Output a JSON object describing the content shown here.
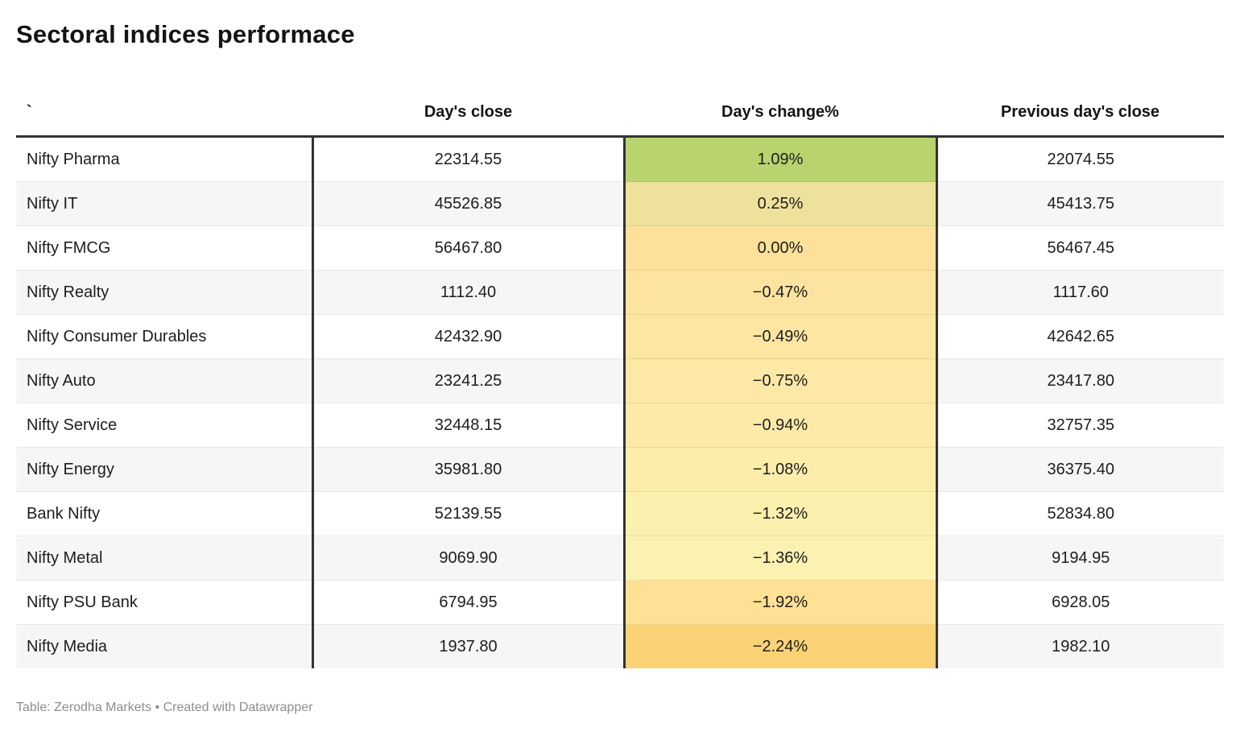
{
  "title": "Sectoral indices performace",
  "columns": {
    "index": "`",
    "days_close": "Day's close",
    "days_change": "Day's change%",
    "prev_close": "Previous day's close"
  },
  "rows": [
    {
      "index": "Nifty Pharma",
      "days_close": "22314.55",
      "days_change": "1.09%",
      "prev_close": "22074.55",
      "change_bg": "#b9d36f"
    },
    {
      "index": "Nifty IT",
      "days_close": "45526.85",
      "days_change": "0.25%",
      "prev_close": "45413.75",
      "change_bg": "#eee19c"
    },
    {
      "index": "Nifty FMCG",
      "days_close": "56467.80",
      "days_change": "0.00%",
      "prev_close": "56467.45",
      "change_bg": "#fde09a"
    },
    {
      "index": "Nifty Realty",
      "days_close": "1112.40",
      "days_change": "−0.47%",
      "prev_close": "1117.60",
      "change_bg": "#fde3a0"
    },
    {
      "index": "Nifty Consumer Durables",
      "days_close": "42432.90",
      "days_change": "−0.49%",
      "prev_close": "42642.65",
      "change_bg": "#fde5a2"
    },
    {
      "index": "Nifty Auto",
      "days_close": "23241.25",
      "days_change": "−0.75%",
      "prev_close": "23417.80",
      "change_bg": "#fde8a5"
    },
    {
      "index": "Nifty Service",
      "days_close": "32448.15",
      "days_change": "−0.94%",
      "prev_close": "32757.35",
      "change_bg": "#fdeaa8"
    },
    {
      "index": "Nifty Energy",
      "days_close": "35981.80",
      "days_change": "−1.08%",
      "prev_close": "36375.40",
      "change_bg": "#fcedab"
    },
    {
      "index": "Bank Nifty",
      "days_close": "52139.55",
      "days_change": "−1.32%",
      "prev_close": "52834.80",
      "change_bg": "#fbf0ad"
    },
    {
      "index": "Nifty Metal",
      "days_close": "9069.90",
      "days_change": "−1.36%",
      "prev_close": "9194.95",
      "change_bg": "#fbf2b2"
    },
    {
      "index": "Nifty PSU Bank",
      "days_close": "6794.95",
      "days_change": "−1.92%",
      "prev_close": "6928.05",
      "change_bg": "#fee194"
    },
    {
      "index": "Nifty Media",
      "days_close": "1937.80",
      "days_change": "−2.24%",
      "prev_close": "1982.10",
      "change_bg": "#fbd376"
    }
  ],
  "footer": {
    "prefix": "Table: ",
    "source": "Zerodha Markets",
    "separator": " • ",
    "created_prefix": "Created with ",
    "tool": "Datawrapper"
  },
  "colors": {
    "header_border": "#333333",
    "row_stripe": "#f6f6f6",
    "row_separator": "#e8e8e8",
    "positive_green": "#b9d36f",
    "negative_orange": "#fbd376",
    "footer_gray": "#8e8e8e"
  },
  "chart_data": {
    "type": "table",
    "title": "Sectoral indices performace",
    "columns": [
      "`",
      "Day's close",
      "Day's change%",
      "Previous day's close"
    ],
    "heatmap_column": "Day's change%",
    "rows": [
      {
        "index": "Nifty Pharma",
        "days_close": 22314.55,
        "days_change_pct": 1.09,
        "prev_day_close": 22074.55
      },
      {
        "index": "Nifty IT",
        "days_close": 45526.85,
        "days_change_pct": 0.25,
        "prev_day_close": 45413.75
      },
      {
        "index": "Nifty FMCG",
        "days_close": 56467.8,
        "days_change_pct": 0.0,
        "prev_day_close": 56467.45
      },
      {
        "index": "Nifty Realty",
        "days_close": 1112.4,
        "days_change_pct": -0.47,
        "prev_day_close": 1117.6
      },
      {
        "index": "Nifty Consumer Durables",
        "days_close": 42432.9,
        "days_change_pct": -0.49,
        "prev_day_close": 42642.65
      },
      {
        "index": "Nifty Auto",
        "days_close": 23241.25,
        "days_change_pct": -0.75,
        "prev_day_close": 23417.8
      },
      {
        "index": "Nifty Service",
        "days_close": 32448.15,
        "days_change_pct": -0.94,
        "prev_day_close": 32757.35
      },
      {
        "index": "Nifty Energy",
        "days_close": 35981.8,
        "days_change_pct": -1.08,
        "prev_day_close": 36375.4
      },
      {
        "index": "Bank Nifty",
        "days_close": 52139.55,
        "days_change_pct": -1.32,
        "prev_day_close": 52834.8
      },
      {
        "index": "Nifty Metal",
        "days_close": 9069.9,
        "days_change_pct": -1.36,
        "prev_day_close": 9194.95
      },
      {
        "index": "Nifty PSU Bank",
        "days_close": 6794.95,
        "days_change_pct": -1.92,
        "prev_day_close": 6928.05
      },
      {
        "index": "Nifty Media",
        "days_close": 1937.8,
        "days_change_pct": -2.24,
        "prev_day_close": 1982.1
      }
    ],
    "footer": "Table: Zerodha Markets • Created with Datawrapper"
  }
}
